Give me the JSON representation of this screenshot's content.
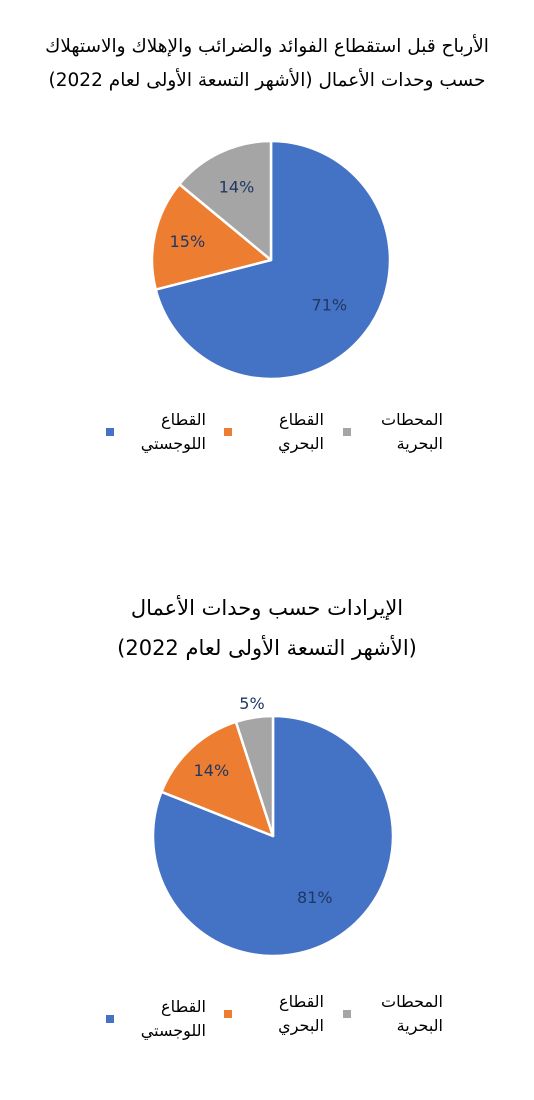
{
  "chart_data": [
    {
      "type": "pie",
      "title_lines": [
        "الأرباح قبل استقطاع الفوائد والضرائب والإهلاك والاستهلاك",
        "حسب وحدات الأعمال (الأشهر التسعة الأولى لعام 2022)"
      ],
      "labels": [
        "القطاع اللوجستي",
        "القطاع البحري",
        "المحطات البحرية"
      ],
      "legend_lines": [
        [
          "القطاع",
          "اللوجستي"
        ],
        [
          "القطاع",
          "البحري"
        ],
        [
          "المحطات",
          "البحرية"
        ]
      ],
      "values": [
        71,
        15,
        14
      ],
      "data_labels": [
        "71%",
        "15%",
        "14%"
      ],
      "colors": [
        "#4472C4",
        "#ED7D31",
        "#A5A5A5"
      ],
      "legend_position": "bottom"
    },
    {
      "type": "pie",
      "title_lines": [
        "الإيرادات حسب وحدات الأعمال",
        "(الأشهر التسعة الأولى لعام 2022)"
      ],
      "labels": [
        "القطاع اللوجستي",
        "القطاع البحري",
        "المحطات البحرية"
      ],
      "legend_lines": [
        [
          "القطاع",
          "اللوجستي"
        ],
        [
          "القطاع",
          "البحري"
        ],
        [
          "المحطات",
          "البحرية"
        ]
      ],
      "values": [
        81,
        14,
        5
      ],
      "data_labels": [
        "81%",
        "14%",
        "5%"
      ],
      "colors": [
        "#4472C4",
        "#ED7D31",
        "#A5A5A5"
      ],
      "legend_position": "bottom"
    }
  ]
}
